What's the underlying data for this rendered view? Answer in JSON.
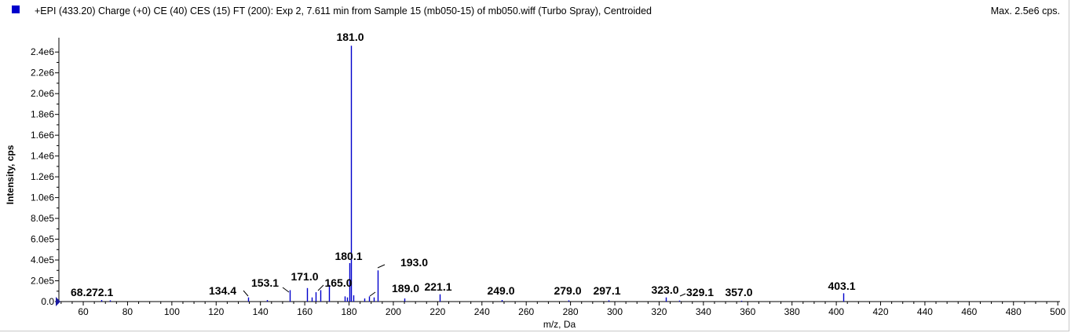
{
  "header": {
    "title": "+EPI (433.20) Charge (+0) CE (40) CES (15) FT (200): Exp 2, 7.611 min from Sample 15 (mb050-15) of mb050.wiff (Turbo Spray), Centroided",
    "max_label": "Max. 2.5e6 cps.",
    "series_color": "#0000cc"
  },
  "chart_data": {
    "type": "bar",
    "xlabel": "m/z, Da",
    "ylabel": "Intensity, cps",
    "xlim": [
      49,
      501
    ],
    "ylim": [
      0,
      2500000.0
    ],
    "x_ticks": [
      60,
      80,
      100,
      120,
      140,
      160,
      180,
      200,
      220,
      240,
      260,
      280,
      300,
      320,
      340,
      360,
      380,
      400,
      420,
      440,
      460,
      480,
      500
    ],
    "y_ticks": [
      {
        "value": 0,
        "label": "0.0"
      },
      {
        "value": 200000,
        "label": "2.0e5"
      },
      {
        "value": 400000,
        "label": "4.0e5"
      },
      {
        "value": 600000,
        "label": "6.0e5"
      },
      {
        "value": 800000,
        "label": "8.0e5"
      },
      {
        "value": 1000000,
        "label": "1.0e6"
      },
      {
        "value": 1200000,
        "label": "1.2e6"
      },
      {
        "value": 1400000,
        "label": "1.4e6"
      },
      {
        "value": 1600000,
        "label": "1.6e6"
      },
      {
        "value": 1800000,
        "label": "1.8e6"
      },
      {
        "value": 2000000,
        "label": "2.0e6"
      },
      {
        "value": 2200000,
        "label": "2.2e6"
      },
      {
        "value": 2400000,
        "label": "2.4e6"
      }
    ],
    "peaks": [
      {
        "mz": 68.2,
        "intensity": 15000
      },
      {
        "mz": 72.1,
        "intensity": 12000
      },
      {
        "mz": 134.4,
        "intensity": 40000
      },
      {
        "mz": 143.0,
        "intensity": 15000
      },
      {
        "mz": 153.1,
        "intensity": 110000
      },
      {
        "mz": 161.0,
        "intensity": 130000
      },
      {
        "mz": 163.0,
        "intensity": 40000
      },
      {
        "mz": 165.0,
        "intensity": 90000
      },
      {
        "mz": 167.0,
        "intensity": 110000
      },
      {
        "mz": 171.0,
        "intensity": 160000
      },
      {
        "mz": 178.0,
        "intensity": 50000
      },
      {
        "mz": 179.0,
        "intensity": 40000
      },
      {
        "mz": 180.1,
        "intensity": 370000
      },
      {
        "mz": 181.0,
        "intensity": 2460000
      },
      {
        "mz": 182.0,
        "intensity": 60000
      },
      {
        "mz": 187.0,
        "intensity": 30000
      },
      {
        "mz": 189.0,
        "intensity": 50000
      },
      {
        "mz": 191.0,
        "intensity": 40000
      },
      {
        "mz": 193.0,
        "intensity": 300000
      },
      {
        "mz": 205.0,
        "intensity": 30000
      },
      {
        "mz": 221.1,
        "intensity": 70000
      },
      {
        "mz": 249.0,
        "intensity": 15000
      },
      {
        "mz": 279.0,
        "intensity": 12000
      },
      {
        "mz": 297.1,
        "intensity": 12000
      },
      {
        "mz": 323.0,
        "intensity": 40000
      },
      {
        "mz": 329.1,
        "intensity": 10000
      },
      {
        "mz": 357.0,
        "intensity": 8000
      },
      {
        "mz": 403.1,
        "intensity": 80000
      }
    ],
    "peak_labels": [
      "68.2",
      "72.1",
      "134.4",
      "153.1",
      "171.0",
      "165.0",
      "180.1",
      "181.0",
      "189.0",
      "193.0",
      "221.1",
      "249.0",
      "279.0",
      "297.1",
      "323.0",
      "329.1",
      "357.0",
      "403.1"
    ],
    "grid": false
  }
}
